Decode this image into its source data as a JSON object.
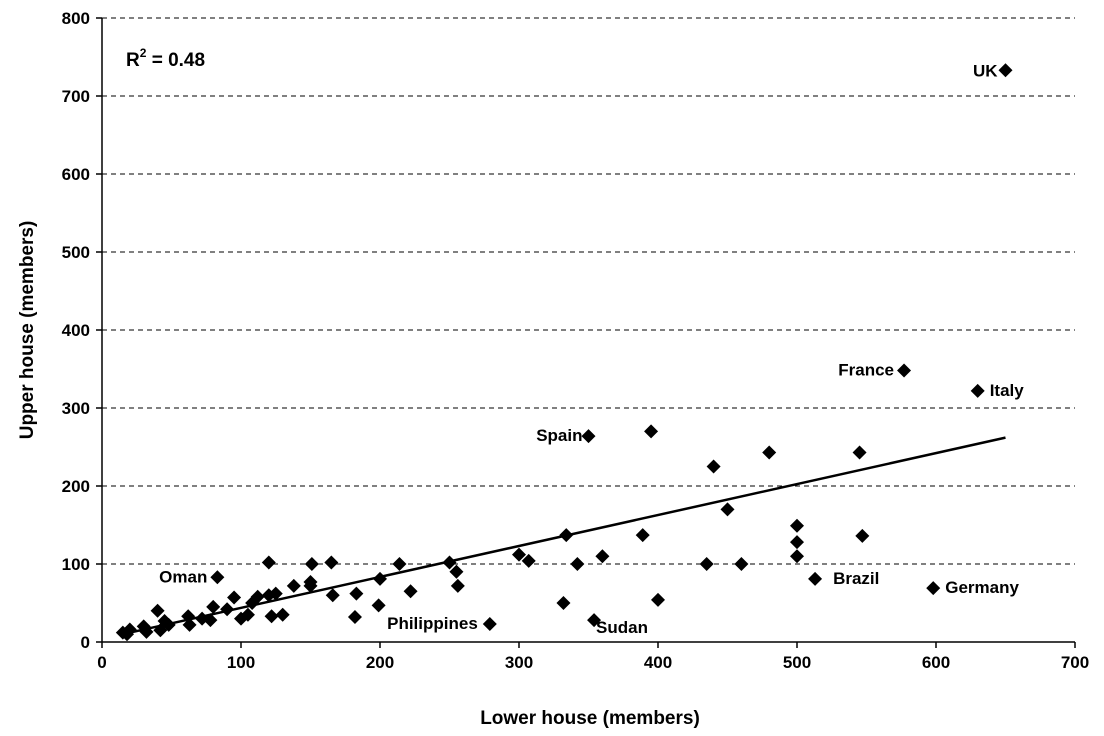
{
  "chart_data": {
    "type": "scatter",
    "xlabel": "Lower house (members)",
    "ylabel": "Upper house (members)",
    "xlim": [
      0,
      700
    ],
    "ylim": [
      0,
      800
    ],
    "xticks": [
      "0",
      "100",
      "200",
      "300",
      "400",
      "500",
      "600",
      "700"
    ],
    "yticks": [
      "0",
      "100",
      "200",
      "300",
      "400",
      "500",
      "600",
      "700",
      "800"
    ],
    "grid": "horizontal dashed",
    "annotation": {
      "prefix": "R",
      "sup": "2",
      "suffix": " = 0.48"
    },
    "trendline": {
      "x": [
        15,
        650
      ],
      "y": [
        10,
        262
      ]
    },
    "points": [
      {
        "x": 15,
        "y": 12
      },
      {
        "x": 18,
        "y": 10
      },
      {
        "x": 20,
        "y": 16
      },
      {
        "x": 30,
        "y": 20
      },
      {
        "x": 32,
        "y": 13
      },
      {
        "x": 40,
        "y": 40
      },
      {
        "x": 42,
        "y": 15
      },
      {
        "x": 45,
        "y": 27
      },
      {
        "x": 48,
        "y": 22
      },
      {
        "x": 62,
        "y": 33
      },
      {
        "x": 63,
        "y": 22
      },
      {
        "x": 72,
        "y": 30
      },
      {
        "x": 78,
        "y": 28
      },
      {
        "x": 80,
        "y": 45
      },
      {
        "x": 83,
        "y": 83,
        "label": "Oman"
      },
      {
        "x": 90,
        "y": 42
      },
      {
        "x": 95,
        "y": 57
      },
      {
        "x": 100,
        "y": 30
      },
      {
        "x": 105,
        "y": 35
      },
      {
        "x": 108,
        "y": 50
      },
      {
        "x": 112,
        "y": 58
      },
      {
        "x": 120,
        "y": 60
      },
      {
        "x": 120,
        "y": 102
      },
      {
        "x": 122,
        "y": 33
      },
      {
        "x": 125,
        "y": 62
      },
      {
        "x": 130,
        "y": 35
      },
      {
        "x": 138,
        "y": 72
      },
      {
        "x": 150,
        "y": 72
      },
      {
        "x": 150,
        "y": 77
      },
      {
        "x": 151,
        "y": 100
      },
      {
        "x": 165,
        "y": 102
      },
      {
        "x": 166,
        "y": 60
      },
      {
        "x": 182,
        "y": 32
      },
      {
        "x": 183,
        "y": 62
      },
      {
        "x": 199,
        "y": 47
      },
      {
        "x": 200,
        "y": 81
      },
      {
        "x": 214,
        "y": 100
      },
      {
        "x": 222,
        "y": 65
      },
      {
        "x": 250,
        "y": 102
      },
      {
        "x": 255,
        "y": 90
      },
      {
        "x": 256,
        "y": 72
      },
      {
        "x": 279,
        "y": 23,
        "label": "Philippines"
      },
      {
        "x": 300,
        "y": 112
      },
      {
        "x": 307,
        "y": 104
      },
      {
        "x": 332,
        "y": 50
      },
      {
        "x": 334,
        "y": 137
      },
      {
        "x": 342,
        "y": 100
      },
      {
        "x": 350,
        "y": 264,
        "label": "Spain"
      },
      {
        "x": 354,
        "y": 28,
        "label": "Sudan"
      },
      {
        "x": 360,
        "y": 110
      },
      {
        "x": 389,
        "y": 137
      },
      {
        "x": 395,
        "y": 270
      },
      {
        "x": 400,
        "y": 54
      },
      {
        "x": 435,
        "y": 100
      },
      {
        "x": 440,
        "y": 225
      },
      {
        "x": 450,
        "y": 170
      },
      {
        "x": 460,
        "y": 100
      },
      {
        "x": 480,
        "y": 243
      },
      {
        "x": 500,
        "y": 149
      },
      {
        "x": 500,
        "y": 128
      },
      {
        "x": 500,
        "y": 110
      },
      {
        "x": 513,
        "y": 81,
        "label": "Brazil"
      },
      {
        "x": 545,
        "y": 243
      },
      {
        "x": 547,
        "y": 136
      },
      {
        "x": 577,
        "y": 348,
        "label": "France"
      },
      {
        "x": 598,
        "y": 69,
        "label": "Germany"
      },
      {
        "x": 630,
        "y": 322,
        "label": "Italy"
      },
      {
        "x": 650,
        "y": 733,
        "label": "UK"
      }
    ]
  }
}
